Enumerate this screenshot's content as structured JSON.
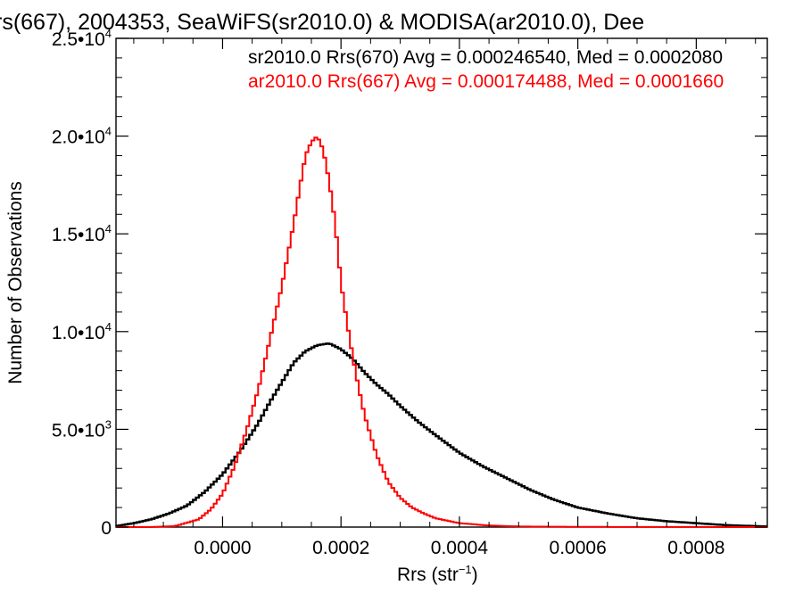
{
  "chart_data": {
    "type": "line",
    "step": true,
    "title": "rs(667), 2004353, SeaWiFS(sr2010.0) & MODISA(ar2010.0), Dee",
    "xlabel": "Rrs (str",
    "xlabel_sup": "−1",
    "xlabel_close": ")",
    "ylabel": "Number of Observations",
    "xlim": [
      -0.00018,
      0.00092
    ],
    "ylim": [
      0,
      25000
    ],
    "x_ticks": [
      {
        "value": 0.0,
        "label": "0.0000"
      },
      {
        "value": 0.0002,
        "label": "0.0002"
      },
      {
        "value": 0.0004,
        "label": "0.0004"
      },
      {
        "value": 0.0006,
        "label": "0.0006"
      },
      {
        "value": 0.0008,
        "label": "0.0008"
      }
    ],
    "y_ticks": [
      {
        "value": 0,
        "mant": "0",
        "exp": ""
      },
      {
        "value": 5000,
        "mant": "5.0•10",
        "exp": "3"
      },
      {
        "value": 10000,
        "mant": "1.0•10",
        "exp": "4"
      },
      {
        "value": 15000,
        "mant": "1.5•10",
        "exp": "4"
      },
      {
        "value": 20000,
        "mant": "2.0•10",
        "exp": "4"
      },
      {
        "value": 25000,
        "mant": "2.5•10",
        "exp": "4"
      }
    ],
    "annotations": [
      {
        "text": "sr2010.0 Rrs(670) Avg = 0.000246540, Med = 0.0002080",
        "color": "#000000"
      },
      {
        "text": "ar2010.0 Rrs(667) Avg = 0.000174488, Med = 0.0001660",
        "color": "#ff0000"
      }
    ],
    "series": [
      {
        "color": "#000000",
        "x": [
          -0.00018,
          -0.00015,
          -0.00012,
          -9e-05,
          -6e-05,
          -3e-05,
          0.0,
          3e-05,
          6e-05,
          8e-05,
          0.0001,
          0.00012,
          0.00014,
          0.00016,
          0.00018,
          0.0002,
          0.00022,
          0.00024,
          0.00026,
          0.00028,
          0.0003,
          0.00033,
          0.00036,
          0.0004,
          0.00044,
          0.00048,
          0.00052,
          0.00056,
          0.0006,
          0.00065,
          0.0007,
          0.00075,
          0.0008,
          0.00085,
          0.0009,
          0.00092
        ],
        "y": [
          50,
          200,
          400,
          700,
          1100,
          1800,
          2700,
          3900,
          5300,
          6400,
          7400,
          8400,
          9000,
          9300,
          9400,
          9100,
          8600,
          7900,
          7300,
          6800,
          6200,
          5400,
          4700,
          3800,
          3100,
          2500,
          1900,
          1400,
          1000,
          700,
          450,
          300,
          200,
          100,
          50,
          30
        ]
      },
      {
        "color": "#ff0000",
        "x": [
          -0.00018,
          -0.00012,
          -8e-05,
          -4e-05,
          -2e-05,
          0.0,
          2e-05,
          4e-05,
          6e-05,
          8e-05,
          0.0001,
          0.00012,
          0.00013,
          0.00014,
          0.00015,
          0.00016,
          0.00017,
          0.00018,
          0.00019,
          0.0002,
          0.00021,
          0.00022,
          0.00023,
          0.00024,
          0.00026,
          0.00028,
          0.0003,
          0.00032,
          0.00034,
          0.00036,
          0.0004,
          0.00045,
          0.0005,
          0.0006,
          0.00092
        ],
        "y": [
          0,
          0,
          50,
          400,
          900,
          1700,
          3100,
          4900,
          7000,
          9600,
          12300,
          15500,
          17300,
          19000,
          19700,
          20000,
          19300,
          17700,
          15600,
          12500,
          10500,
          8700,
          7100,
          5700,
          3700,
          2300,
          1500,
          1000,
          700,
          450,
          200,
          80,
          30,
          10,
          0
        ]
      }
    ],
    "grid": false,
    "legend": "none"
  }
}
